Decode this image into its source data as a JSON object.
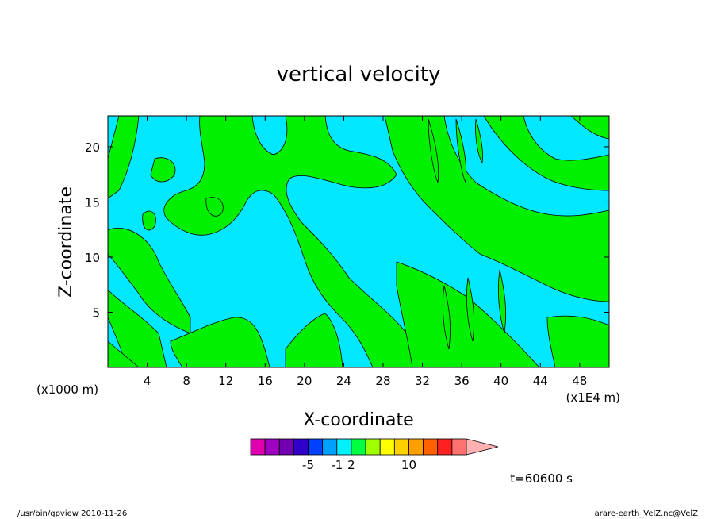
{
  "chart_data": {
    "type": "contour",
    "title": "vertical velocity",
    "xlabel": "X-coordinate",
    "ylabel": "Z-coordinate",
    "x_unit_left": "(x1000 m)",
    "x_unit_right": "(x1E4 m)",
    "x_ticks": [
      "4",
      "8",
      "12",
      "16",
      "20",
      "24",
      "28",
      "32",
      "36",
      "40",
      "44",
      "48"
    ],
    "y_ticks": [
      "5",
      "10",
      "15",
      "20"
    ],
    "xlim": [
      0,
      51
    ],
    "ylim": [
      0,
      22.8
    ],
    "colorbar": {
      "labels": [
        "-5",
        "-1",
        "2",
        "10"
      ],
      "colors": [
        "#e000b0",
        "#a000c0",
        "#7000b0",
        "#3000c8",
        "#0040ff",
        "#00a0ff",
        "#00f0ff",
        "#00ff40",
        "#a0ff00",
        "#ffff00",
        "#ffd000",
        "#ffa000",
        "#ff6000",
        "#ff2020",
        "#ff7070",
        "#ffb0b0"
      ],
      "label_positions": [
        4,
        6,
        7,
        11
      ]
    },
    "fill_colors": {
      "negative": "#00e8ff",
      "positive": "#00f000"
    },
    "timestamp": "t=60600 s",
    "footer_left": "/usr/bin/gpview  2010-11-26",
    "footer_right": "arare-earth_VelZ.nc@VelZ"
  }
}
